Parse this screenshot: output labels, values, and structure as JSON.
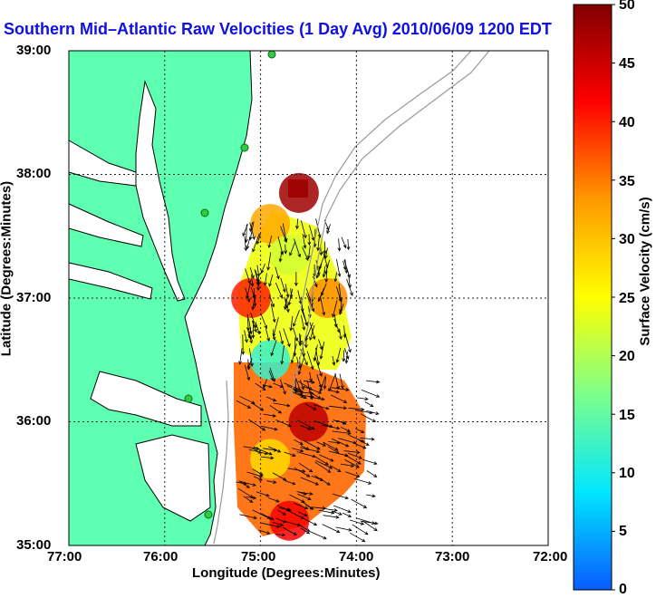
{
  "title": "Southern Mid–Atlantic Raw Velocities (1 Day Avg) 2010/06/09 1200 EDT",
  "xlabel": "Longitude (Degrees:Minutes)",
  "ylabel": "Latitude (Degrees:Minutes)",
  "xticks": [
    "77:00",
    "76:00",
    "75:00",
    "74:00",
    "73:00",
    "72:00"
  ],
  "yticks": [
    "39:00",
    "38:00",
    "37:00",
    "36:00",
    "35:00"
  ],
  "colorbar": {
    "label": "Surface Velocity (cm/s)",
    "ticks": [
      "50",
      "45",
      "40",
      "35",
      "30",
      "25",
      "20",
      "15",
      "10",
      "5",
      "0"
    ],
    "colors": [
      "#0a5cff",
      "#00e6ff",
      "#7cff8a",
      "#ffff00",
      "#ff9900",
      "#ff0000",
      "#800000"
    ]
  },
  "colors": {
    "land": "#5effb0",
    "grid": "#222222",
    "bathymetry": "#9a9a9a",
    "title": "#1010e0",
    "stations": "#2ecc40"
  },
  "chart_data": {
    "type": "heatmap",
    "title": "Southern Mid–Atlantic Raw Velocities (1 Day Avg) 2010/06/09 1200 EDT",
    "xlabel": "Longitude (Degrees:Minutes)",
    "ylabel": "Latitude (Degrees:Minutes)",
    "xlim": [
      -77.0,
      -72.0
    ],
    "ylim": [
      35.0,
      39.0
    ],
    "colorbar_range": [
      0,
      50
    ],
    "grid": true,
    "regions": [
      {
        "lon": -74.6,
        "lat": 37.85,
        "speed": 48
      },
      {
        "lon": -74.9,
        "lat": 37.6,
        "speed": 32
      },
      {
        "lon": -74.7,
        "lat": 37.35,
        "speed": 22
      },
      {
        "lon": -75.1,
        "lat": 37.0,
        "speed": 40
      },
      {
        "lon": -74.3,
        "lat": 37.0,
        "speed": 34
      },
      {
        "lon": -74.9,
        "lat": 36.5,
        "speed": 12
      },
      {
        "lon": -74.5,
        "lat": 36.0,
        "speed": 46
      },
      {
        "lon": -74.9,
        "lat": 35.7,
        "speed": 28
      },
      {
        "lon": -74.7,
        "lat": 35.2,
        "speed": 42
      }
    ]
  }
}
